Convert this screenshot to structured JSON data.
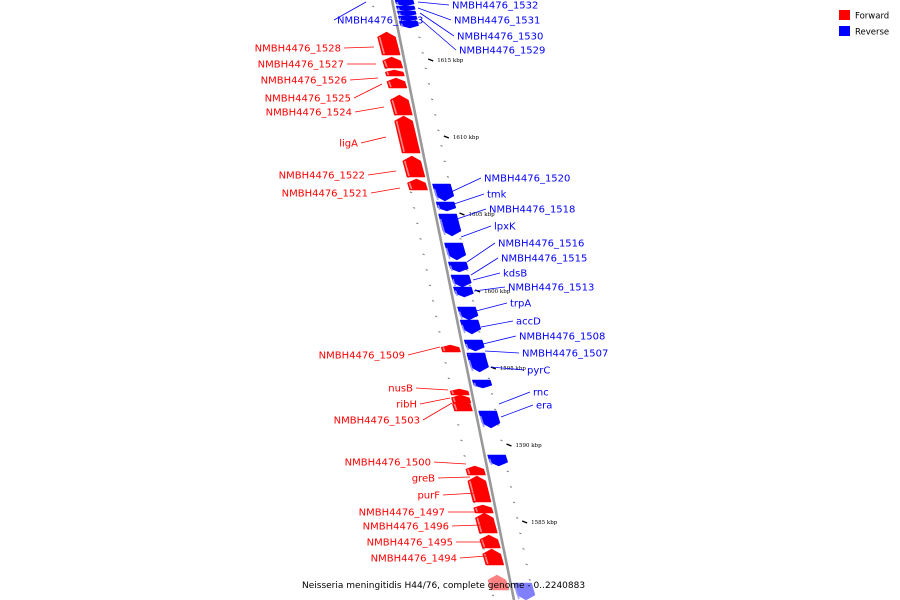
{
  "colors": {
    "forward": "#ff0000",
    "reverse": "#0000ff",
    "forward_light": "#ff9999",
    "reverse_light": "#9999ff",
    "backbone": "#999999"
  },
  "legend": [
    {
      "label": "Forward",
      "color": "#ff0000"
    },
    {
      "label": "Reverse",
      "color": "#0000ff"
    }
  ],
  "caption": "Neisseria meningitidis H44/76, complete genome - 0..2240883",
  "ticks": [
    {
      "label": "1615 kbp"
    },
    {
      "label": "1610 kbp"
    },
    {
      "label": "1605 kbp"
    },
    {
      "label": "1600 kbp"
    },
    {
      "label": "1595 kbp"
    },
    {
      "label": "1590 kbp"
    },
    {
      "label": "1585 kbp"
    }
  ],
  "genes": [
    {
      "name": "NMBH4476_1533",
      "strand": "reverse"
    },
    {
      "name": "NMBH4476_1532",
      "strand": "reverse"
    },
    {
      "name": "NMBH4476_1531",
      "strand": "reverse"
    },
    {
      "name": "NMBH4476_1530",
      "strand": "reverse"
    },
    {
      "name": "NMBH4476_1529",
      "strand": "reverse"
    },
    {
      "name": "NMBH4476_1528",
      "strand": "forward"
    },
    {
      "name": "NMBH4476_1527",
      "strand": "forward"
    },
    {
      "name": "NMBH4476_1526",
      "strand": "forward"
    },
    {
      "name": "NMBH4476_1525",
      "strand": "forward"
    },
    {
      "name": "NMBH4476_1524",
      "strand": "forward"
    },
    {
      "name": "ligA",
      "strand": "forward"
    },
    {
      "name": "NMBH4476_1522",
      "strand": "forward"
    },
    {
      "name": "NMBH4476_1521",
      "strand": "forward"
    },
    {
      "name": "NMBH4476_1520",
      "strand": "reverse"
    },
    {
      "name": "tmk",
      "strand": "reverse"
    },
    {
      "name": "NMBH4476_1518",
      "strand": "reverse"
    },
    {
      "name": "lpxK",
      "strand": "reverse"
    },
    {
      "name": "NMBH4476_1516",
      "strand": "reverse"
    },
    {
      "name": "NMBH4476_1515",
      "strand": "reverse"
    },
    {
      "name": "kdsB",
      "strand": "reverse"
    },
    {
      "name": "NMBH4476_1513",
      "strand": "reverse"
    },
    {
      "name": "trpA",
      "strand": "reverse"
    },
    {
      "name": "accD",
      "strand": "reverse"
    },
    {
      "name": "NMBH4476_1509",
      "strand": "forward"
    },
    {
      "name": "NMBH4476_1508",
      "strand": "reverse"
    },
    {
      "name": "NMBH4476_1507",
      "strand": "reverse"
    },
    {
      "name": "pyrC",
      "strand": "reverse"
    },
    {
      "name": "nusB",
      "strand": "forward"
    },
    {
      "name": "ribH",
      "strand": "forward"
    },
    {
      "name": "NMBH4476_1503",
      "strand": "forward"
    },
    {
      "name": "rnc",
      "strand": "reverse"
    },
    {
      "name": "era",
      "strand": "reverse"
    },
    {
      "name": "NMBH4476_1500",
      "strand": "forward"
    },
    {
      "name": "greB",
      "strand": "forward"
    },
    {
      "name": "purF",
      "strand": "forward"
    },
    {
      "name": "NMBH4476_1497",
      "strand": "forward"
    },
    {
      "name": "NMBH4476_1496",
      "strand": "forward"
    },
    {
      "name": "NMBH4476_1495",
      "strand": "forward"
    },
    {
      "name": "NMBH4476_1494",
      "strand": "forward"
    }
  ]
}
